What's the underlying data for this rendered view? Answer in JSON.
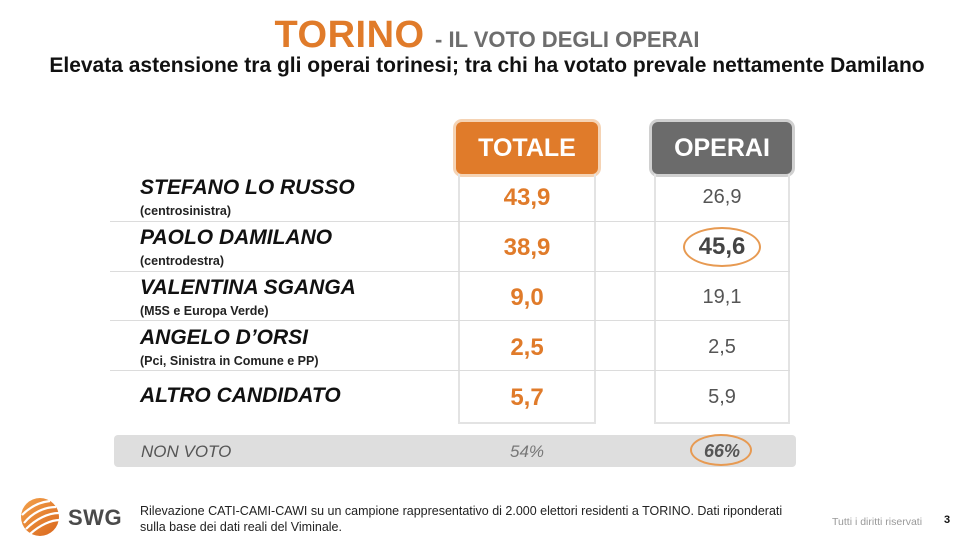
{
  "title": {
    "main": "TORINO",
    "sub": "- IL VOTO DEGLI OPERAI"
  },
  "subtitle": "Elevata astensione tra gli operai torinesi; tra chi ha votato prevale nettamente Damilano",
  "columns": {
    "totale": "TOTALE",
    "operai": "OPERAI"
  },
  "candidates": [
    {
      "name": "STEFANO LO RUSSO",
      "party": "(centrosinistra)",
      "totale": "43,9",
      "operai": "26,9"
    },
    {
      "name": "PAOLO DAMILANO",
      "party": "(centrodestra)",
      "totale": "38,9",
      "operai": "45,6",
      "highlight": true
    },
    {
      "name": "VALENTINA SGANGA",
      "party": "(M5S e Europa Verde)",
      "totale": "9,0",
      "operai": "19,1"
    },
    {
      "name": "ANGELO D’ORSI",
      "party": "(Pci, Sinistra in Comune e PP)",
      "totale": "2,5",
      "operai": "2,5"
    },
    {
      "name": "ALTRO CANDIDATO",
      "party": "",
      "totale": "5,7",
      "operai": "5,9"
    }
  ],
  "non_voto": {
    "label": "NON VOTO",
    "totale": "54%",
    "operai": "66%"
  },
  "logo": {
    "text": "SWG"
  },
  "footnote": "Rilevazione CATI-CAMI-CAWI su un campione rappresentativo di 2.000 elettori residenti a TORINO. Dati riponderati sulla base dei dati reali del Viminale.",
  "rights": "Tutti i diritti riservati",
  "page_number": "3",
  "colors": {
    "accent": "#e07b2a",
    "gray_header": "#6b6b6b",
    "nonvoto_bar": "#dedede"
  }
}
